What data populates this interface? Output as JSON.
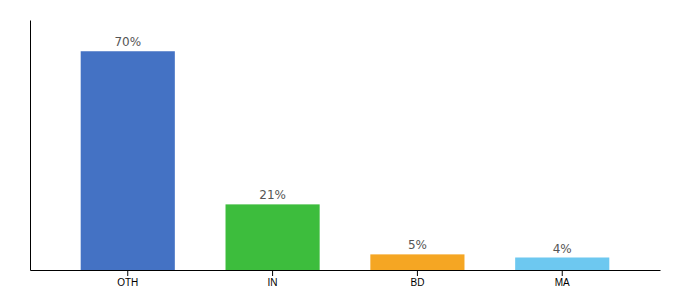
{
  "chart_data": {
    "type": "bar",
    "categories": [
      "OTH",
      "IN",
      "BD",
      "MA"
    ],
    "values": [
      70,
      21,
      5,
      4
    ],
    "value_labels": [
      "70%",
      "21%",
      "5%",
      "4%"
    ],
    "colors": [
      "#4472C4",
      "#3DBD3D",
      "#F5A623",
      "#6DC8F0"
    ],
    "ylim": [
      0,
      80
    ],
    "data_labels": true,
    "tick_labels": "x",
    "grid": false
  }
}
